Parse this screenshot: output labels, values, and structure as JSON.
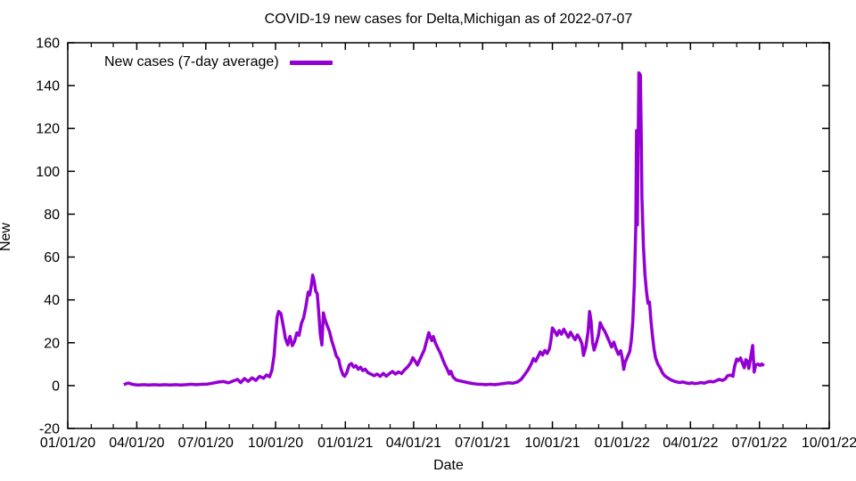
{
  "chart_data": {
    "type": "line",
    "title": "COVID-19 new cases for Delta,Michigan as of 2022-07-07",
    "xlabel": "Date",
    "ylabel": "New",
    "grid": false,
    "legend_position": "top-left-inside",
    "ylim": [
      -20,
      160
    ],
    "y_ticks": [
      -20,
      0,
      20,
      40,
      60,
      80,
      100,
      120,
      140,
      160
    ],
    "x_range": [
      "2020-01-01",
      "2022-10-01"
    ],
    "x_ticks": [
      {
        "date": "2020-01-01",
        "label": "01/01/20"
      },
      {
        "date": "2020-04-01",
        "label": "04/01/20"
      },
      {
        "date": "2020-07-01",
        "label": "07/01/20"
      },
      {
        "date": "2020-10-01",
        "label": "10/01/20"
      },
      {
        "date": "2021-01-01",
        "label": "01/01/21"
      },
      {
        "date": "2021-04-01",
        "label": "04/01/21"
      },
      {
        "date": "2021-07-01",
        "label": "07/01/21"
      },
      {
        "date": "2021-10-01",
        "label": "10/01/21"
      },
      {
        "date": "2022-01-01",
        "label": "01/01/22"
      },
      {
        "date": "2022-04-01",
        "label": "04/01/22"
      },
      {
        "date": "2022-07-01",
        "label": "07/01/22"
      },
      {
        "date": "2022-10-01",
        "label": "10/01/22"
      }
    ],
    "minor_x_ticks": "monthly",
    "axis_color": "#000000",
    "background_color": "#ffffff",
    "series": [
      {
        "name": "New cases (7-day average)",
        "color": "#9400D3",
        "points": [
          [
            "2020-03-15",
            0.4
          ],
          [
            "2020-03-18",
            0.9
          ],
          [
            "2020-03-21",
            1.2
          ],
          [
            "2020-03-25",
            0.7
          ],
          [
            "2020-03-29",
            0.4
          ],
          [
            "2020-04-03",
            0.3
          ],
          [
            "2020-04-10",
            0.4
          ],
          [
            "2020-04-17",
            0.3
          ],
          [
            "2020-04-24",
            0.4
          ],
          [
            "2020-05-01",
            0.3
          ],
          [
            "2020-05-08",
            0.4
          ],
          [
            "2020-05-15",
            0.3
          ],
          [
            "2020-05-22",
            0.4
          ],
          [
            "2020-05-29",
            0.3
          ],
          [
            "2020-06-05",
            0.4
          ],
          [
            "2020-06-12",
            0.6
          ],
          [
            "2020-06-19",
            0.4
          ],
          [
            "2020-06-26",
            0.6
          ],
          [
            "2020-07-03",
            0.7
          ],
          [
            "2020-07-10",
            1.1
          ],
          [
            "2020-07-17",
            1.6
          ],
          [
            "2020-07-24",
            1.9
          ],
          [
            "2020-07-31",
            1.3
          ],
          [
            "2020-08-07",
            2.3
          ],
          [
            "2020-08-12",
            2.9
          ],
          [
            "2020-08-16",
            1.4
          ],
          [
            "2020-08-21",
            3.3
          ],
          [
            "2020-08-26",
            2.0
          ],
          [
            "2020-08-31",
            3.6
          ],
          [
            "2020-09-05",
            2.4
          ],
          [
            "2020-09-10",
            4.3
          ],
          [
            "2020-09-15",
            3.4
          ],
          [
            "2020-09-19",
            5.0
          ],
          [
            "2020-09-23",
            4.1
          ],
          [
            "2020-09-26",
            7.0
          ],
          [
            "2020-09-29",
            14.0
          ],
          [
            "2020-10-01",
            24.0
          ],
          [
            "2020-10-03",
            32.0
          ],
          [
            "2020-10-05",
            34.6
          ],
          [
            "2020-10-08",
            33.7
          ],
          [
            "2020-10-11",
            28.0
          ],
          [
            "2020-10-14",
            22.0
          ],
          [
            "2020-10-17",
            19.0
          ],
          [
            "2020-10-20",
            23.0
          ],
          [
            "2020-10-23",
            18.6
          ],
          [
            "2020-10-26",
            20.6
          ],
          [
            "2020-10-29",
            24.6
          ],
          [
            "2020-11-01",
            23.4
          ],
          [
            "2020-11-04",
            29.0
          ],
          [
            "2020-11-07",
            31.6
          ],
          [
            "2020-11-10",
            37.0
          ],
          [
            "2020-11-13",
            43.6
          ],
          [
            "2020-11-15",
            42.3
          ],
          [
            "2020-11-17",
            46.4
          ],
          [
            "2020-11-19",
            51.6
          ],
          [
            "2020-11-21",
            48.6
          ],
          [
            "2020-11-23",
            44.0
          ],
          [
            "2020-11-25",
            42.9
          ],
          [
            "2020-11-27",
            34.0
          ],
          [
            "2020-11-29",
            24.0
          ],
          [
            "2020-12-01",
            19.0
          ],
          [
            "2020-12-03",
            33.9
          ],
          [
            "2020-12-05",
            31.0
          ],
          [
            "2020-12-08",
            28.0
          ],
          [
            "2020-12-11",
            25.3
          ],
          [
            "2020-12-14",
            21.0
          ],
          [
            "2020-12-17",
            17.6
          ],
          [
            "2020-12-20",
            13.9
          ],
          [
            "2020-12-23",
            12.4
          ],
          [
            "2020-12-26",
            7.9
          ],
          [
            "2020-12-29",
            5.0
          ],
          [
            "2020-12-31",
            4.3
          ],
          [
            "2021-01-03",
            6.1
          ],
          [
            "2021-01-06",
            9.6
          ],
          [
            "2021-01-09",
            10.3
          ],
          [
            "2021-01-12",
            8.6
          ],
          [
            "2021-01-15",
            9.3
          ],
          [
            "2021-01-18",
            7.6
          ],
          [
            "2021-01-21",
            8.6
          ],
          [
            "2021-01-24",
            7.0
          ],
          [
            "2021-01-27",
            7.7
          ],
          [
            "2021-01-31",
            6.0
          ],
          [
            "2021-02-04",
            5.3
          ],
          [
            "2021-02-08",
            4.6
          ],
          [
            "2021-02-12",
            5.4
          ],
          [
            "2021-02-16",
            4.3
          ],
          [
            "2021-02-20",
            5.7
          ],
          [
            "2021-02-24",
            4.4
          ],
          [
            "2021-02-28",
            5.6
          ],
          [
            "2021-03-04",
            6.6
          ],
          [
            "2021-03-08",
            5.4
          ],
          [
            "2021-03-12",
            6.4
          ],
          [
            "2021-03-16",
            5.6
          ],
          [
            "2021-03-20",
            7.3
          ],
          [
            "2021-03-24",
            8.7
          ],
          [
            "2021-03-28",
            10.6
          ],
          [
            "2021-03-31",
            13.0
          ],
          [
            "2021-04-03",
            11.4
          ],
          [
            "2021-04-06",
            9.6
          ],
          [
            "2021-04-09",
            12.0
          ],
          [
            "2021-04-12",
            14.3
          ],
          [
            "2021-04-15",
            16.6
          ],
          [
            "2021-04-18",
            20.6
          ],
          [
            "2021-04-21",
            24.7
          ],
          [
            "2021-04-23",
            22.6
          ],
          [
            "2021-04-25",
            21.0
          ],
          [
            "2021-04-27",
            22.9
          ],
          [
            "2021-04-30",
            19.7
          ],
          [
            "2021-05-03",
            17.4
          ],
          [
            "2021-05-06",
            15.4
          ],
          [
            "2021-05-09",
            12.6
          ],
          [
            "2021-05-12",
            10.0
          ],
          [
            "2021-05-15",
            7.9
          ],
          [
            "2021-05-18",
            5.4
          ],
          [
            "2021-05-20",
            6.7
          ],
          [
            "2021-05-23",
            4.0
          ],
          [
            "2021-05-27",
            2.7
          ],
          [
            "2021-05-31",
            2.3
          ],
          [
            "2021-06-05",
            1.9
          ],
          [
            "2021-06-11",
            1.4
          ],
          [
            "2021-06-17",
            1.0
          ],
          [
            "2021-06-23",
            0.7
          ],
          [
            "2021-06-29",
            0.6
          ],
          [
            "2021-07-05",
            0.4
          ],
          [
            "2021-07-11",
            0.6
          ],
          [
            "2021-07-17",
            0.4
          ],
          [
            "2021-07-23",
            0.7
          ],
          [
            "2021-07-29",
            1.0
          ],
          [
            "2021-08-04",
            1.3
          ],
          [
            "2021-08-10",
            1.1
          ],
          [
            "2021-08-16",
            1.7
          ],
          [
            "2021-08-21",
            3.0
          ],
          [
            "2021-08-26",
            5.4
          ],
          [
            "2021-08-30",
            7.4
          ],
          [
            "2021-09-03",
            10.0
          ],
          [
            "2021-09-06",
            12.6
          ],
          [
            "2021-09-09",
            11.4
          ],
          [
            "2021-09-12",
            13.6
          ],
          [
            "2021-09-15",
            15.7
          ],
          [
            "2021-09-18",
            14.3
          ],
          [
            "2021-09-21",
            16.4
          ],
          [
            "2021-09-24",
            15.0
          ],
          [
            "2021-09-27",
            17.1
          ],
          [
            "2021-09-29",
            21.0
          ],
          [
            "2021-10-01",
            26.9
          ],
          [
            "2021-10-04",
            25.4
          ],
          [
            "2021-10-07",
            23.4
          ],
          [
            "2021-10-10",
            25.7
          ],
          [
            "2021-10-13",
            24.0
          ],
          [
            "2021-10-16",
            26.3
          ],
          [
            "2021-10-19",
            24.4
          ],
          [
            "2021-10-22",
            22.6
          ],
          [
            "2021-10-25",
            24.9
          ],
          [
            "2021-10-28",
            23.0
          ],
          [
            "2021-10-31",
            21.4
          ],
          [
            "2021-11-03",
            23.7
          ],
          [
            "2021-11-06",
            22.0
          ],
          [
            "2021-11-09",
            19.4
          ],
          [
            "2021-11-11",
            14.1
          ],
          [
            "2021-11-14",
            18.0
          ],
          [
            "2021-11-17",
            25.0
          ],
          [
            "2021-11-19",
            34.6
          ],
          [
            "2021-11-21",
            30.0
          ],
          [
            "2021-11-23",
            20.0
          ],
          [
            "2021-11-25",
            16.6
          ],
          [
            "2021-11-28",
            20.0
          ],
          [
            "2021-12-01",
            24.0
          ],
          [
            "2021-12-03",
            29.4
          ],
          [
            "2021-12-06",
            27.0
          ],
          [
            "2021-12-09",
            25.4
          ],
          [
            "2021-12-12",
            23.0
          ],
          [
            "2021-12-15",
            20.6
          ],
          [
            "2021-12-18",
            18.0
          ],
          [
            "2021-12-21",
            20.3
          ],
          [
            "2021-12-24",
            17.0
          ],
          [
            "2021-12-27",
            14.6
          ],
          [
            "2021-12-30",
            16.3
          ],
          [
            "2022-01-01",
            13.0
          ],
          [
            "2022-01-03",
            7.6
          ],
          [
            "2022-01-05",
            11.0
          ],
          [
            "2022-01-08",
            13.4
          ],
          [
            "2022-01-11",
            16.0
          ],
          [
            "2022-01-13",
            21.0
          ],
          [
            "2022-01-15",
            30.0
          ],
          [
            "2022-01-17",
            47.0
          ],
          [
            "2022-01-19",
            75.0
          ],
          [
            "2022-01-20",
            119.0
          ],
          [
            "2022-01-21",
            75.0
          ],
          [
            "2022-01-22",
            110.0
          ],
          [
            "2022-01-23",
            146.0
          ],
          [
            "2022-01-25",
            145.0
          ],
          [
            "2022-01-26",
            119.0
          ],
          [
            "2022-01-27",
            88.0
          ],
          [
            "2022-01-29",
            65.0
          ],
          [
            "2022-01-31",
            52.0
          ],
          [
            "2022-02-02",
            44.0
          ],
          [
            "2022-02-04",
            38.4
          ],
          [
            "2022-02-06",
            39.0
          ],
          [
            "2022-02-08",
            30.0
          ],
          [
            "2022-02-10",
            23.0
          ],
          [
            "2022-02-12",
            17.1
          ],
          [
            "2022-02-14",
            13.0
          ],
          [
            "2022-02-17",
            10.0
          ],
          [
            "2022-02-20",
            8.3
          ],
          [
            "2022-02-23",
            6.0
          ],
          [
            "2022-02-26",
            4.6
          ],
          [
            "2022-03-02",
            3.6
          ],
          [
            "2022-03-06",
            2.7
          ],
          [
            "2022-03-10",
            2.1
          ],
          [
            "2022-03-14",
            1.7
          ],
          [
            "2022-03-18",
            1.4
          ],
          [
            "2022-03-22",
            1.7
          ],
          [
            "2022-03-26",
            1.3
          ],
          [
            "2022-03-30",
            1.0
          ],
          [
            "2022-04-03",
            1.3
          ],
          [
            "2022-04-07",
            0.9
          ],
          [
            "2022-04-11",
            1.1
          ],
          [
            "2022-04-15",
            1.4
          ],
          [
            "2022-04-19",
            1.1
          ],
          [
            "2022-04-23",
            1.6
          ],
          [
            "2022-04-27",
            2.0
          ],
          [
            "2022-05-01",
            1.7
          ],
          [
            "2022-05-05",
            2.3
          ],
          [
            "2022-05-09",
            2.9
          ],
          [
            "2022-05-13",
            2.4
          ],
          [
            "2022-05-17",
            3.1
          ],
          [
            "2022-05-20",
            4.6
          ],
          [
            "2022-05-24",
            4.9
          ],
          [
            "2022-05-27",
            4.3
          ],
          [
            "2022-05-29",
            8.7
          ],
          [
            "2022-06-01",
            12.4
          ],
          [
            "2022-06-03",
            11.6
          ],
          [
            "2022-06-06",
            12.9
          ],
          [
            "2022-06-08",
            10.9
          ],
          [
            "2022-06-11",
            8.3
          ],
          [
            "2022-06-13",
            12.1
          ],
          [
            "2022-06-15",
            11.4
          ],
          [
            "2022-06-17",
            8.0
          ],
          [
            "2022-06-19",
            12.3
          ],
          [
            "2022-06-22",
            18.7
          ],
          [
            "2022-06-24",
            6.3
          ],
          [
            "2022-06-26",
            9.7
          ],
          [
            "2022-06-29",
            10.0
          ],
          [
            "2022-07-02",
            9.4
          ],
          [
            "2022-07-04",
            10.1
          ],
          [
            "2022-07-07",
            9.3
          ]
        ]
      }
    ]
  }
}
